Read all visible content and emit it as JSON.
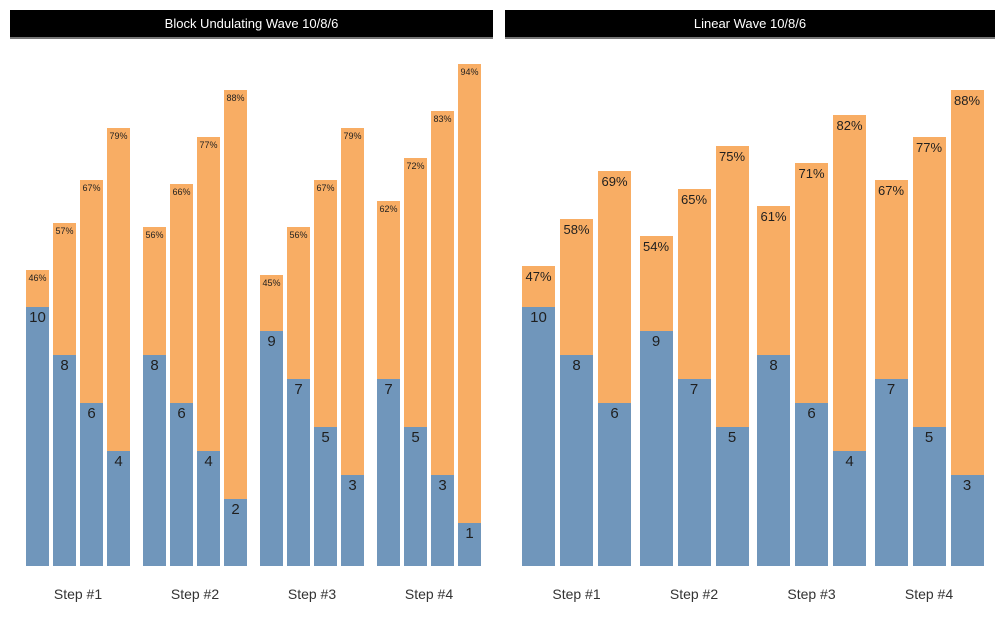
{
  "colors": {
    "bar_bottom": "#7096BB",
    "bar_top": "#F8AD64",
    "title_bg": "#000000",
    "title_text": "#FFFFFF",
    "title_underline": "#777777",
    "bar_label_text": "#1F1F1F",
    "step_label_text": "#333333",
    "background": "#FFFFFF"
  },
  "chart_data": [
    {
      "type": "bar",
      "variant": "stacked-grouped",
      "title": "Block Undulating Wave 10/8/6",
      "legend": "none",
      "axes": "hidden",
      "x_labels": [
        "Step #1",
        "Step #2",
        "Step #3",
        "Step #4"
      ],
      "groups": [
        {
          "label": "Step #1",
          "bars": [
            {
              "reps": 10,
              "pct": 46,
              "pct_label": "46%"
            },
            {
              "reps": 8,
              "pct": 57,
              "pct_label": "57%"
            },
            {
              "reps": 6,
              "pct": 67,
              "pct_label": "67%"
            },
            {
              "reps": 4,
              "pct": 79,
              "pct_label": "79%"
            }
          ]
        },
        {
          "label": "Step #2",
          "bars": [
            {
              "reps": 8,
              "pct": 56,
              "pct_label": "56%"
            },
            {
              "reps": 6,
              "pct": 66,
              "pct_label": "66%"
            },
            {
              "reps": 4,
              "pct": 77,
              "pct_label": "77%"
            },
            {
              "reps": 2,
              "pct": 88,
              "pct_label": "88%"
            }
          ]
        },
        {
          "label": "Step #3",
          "bars": [
            {
              "reps": 9,
              "pct": 45,
              "pct_label": "45%"
            },
            {
              "reps": 7,
              "pct": 56,
              "pct_label": "56%"
            },
            {
              "reps": 5,
              "pct": 67,
              "pct_label": "67%"
            },
            {
              "reps": 3,
              "pct": 79,
              "pct_label": "79%"
            }
          ]
        },
        {
          "label": "Step #4",
          "bars": [
            {
              "reps": 7,
              "pct": 62,
              "pct_label": "62%"
            },
            {
              "reps": 5,
              "pct": 72,
              "pct_label": "72%"
            },
            {
              "reps": 3,
              "pct": 83,
              "pct_label": "83%"
            },
            {
              "reps": 1,
              "pct": 94,
              "pct_label": "94%"
            }
          ]
        }
      ]
    },
    {
      "type": "bar",
      "variant": "stacked-grouped",
      "title": "Linear Wave 10/8/6",
      "legend": "none",
      "axes": "hidden",
      "x_labels": [
        "Step #1",
        "Step #2",
        "Step #3",
        "Step #4"
      ],
      "groups": [
        {
          "label": "Step #1",
          "bars": [
            {
              "reps": 10,
              "pct": 47,
              "pct_label": "47%"
            },
            {
              "reps": 8,
              "pct": 58,
              "pct_label": "58%"
            },
            {
              "reps": 6,
              "pct": 69,
              "pct_label": "69%"
            }
          ]
        },
        {
          "label": "Step #2",
          "bars": [
            {
              "reps": 9,
              "pct": 54,
              "pct_label": "54%"
            },
            {
              "reps": 7,
              "pct": 65,
              "pct_label": "65%"
            },
            {
              "reps": 5,
              "pct": 75,
              "pct_label": "75%"
            }
          ]
        },
        {
          "label": "Step #3",
          "bars": [
            {
              "reps": 8,
              "pct": 61,
              "pct_label": "61%"
            },
            {
              "reps": 6,
              "pct": 71,
              "pct_label": "71%"
            },
            {
              "reps": 4,
              "pct": 82,
              "pct_label": "82%"
            }
          ]
        },
        {
          "label": "Step #4",
          "bars": [
            {
              "reps": 7,
              "pct": 67,
              "pct_label": "67%"
            },
            {
              "reps": 5,
              "pct": 77,
              "pct_label": "77%"
            },
            {
              "reps": 3,
              "pct": 88,
              "pct_label": "88%"
            }
          ]
        }
      ]
    }
  ]
}
